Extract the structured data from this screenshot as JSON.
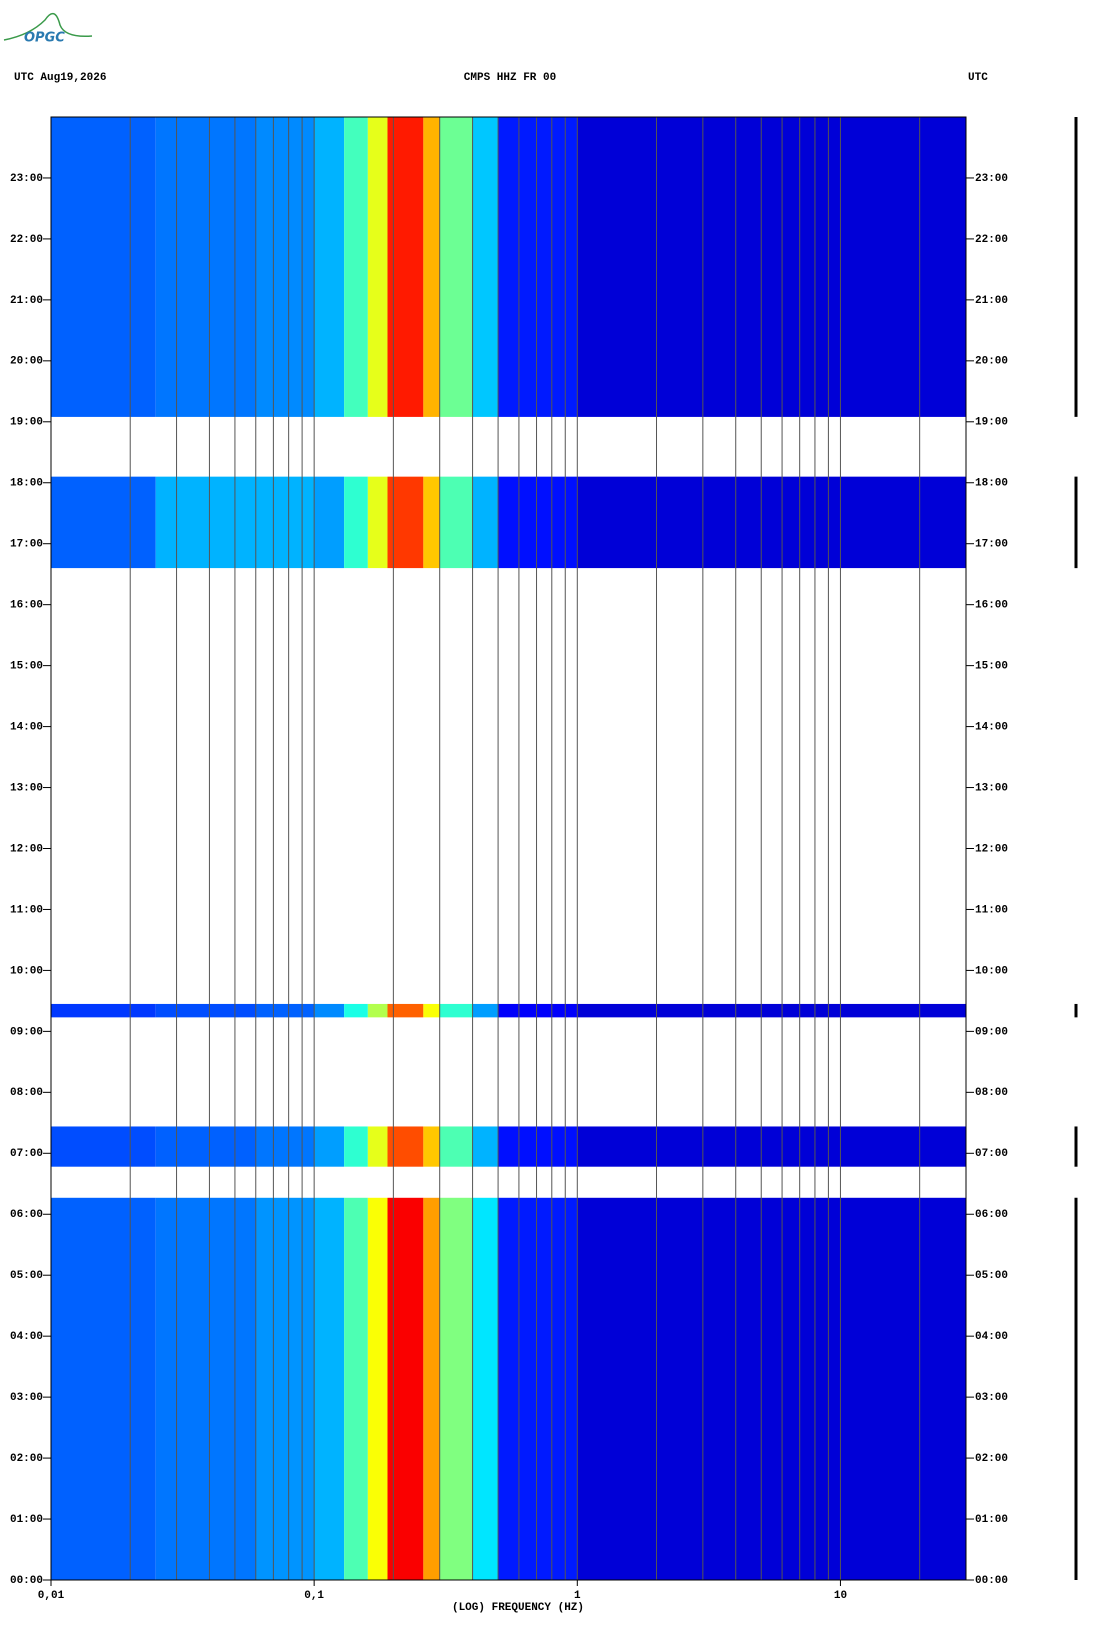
{
  "logo": "OPGC",
  "chart_data": {
    "type": "spectrogram",
    "header_left": "UTC  Aug19,2026",
    "title": "CMPS HHZ FR 00",
    "header_right": "UTC",
    "xlabel": "(LOG) FREQUENCY (HZ)",
    "xscale": "log",
    "xlim": [
      0.01,
      30
    ],
    "xticks": [
      {
        "value": 0.01,
        "label": "0,01"
      },
      {
        "value": 0.1,
        "label": "0,1"
      },
      1,
      10
    ],
    "xgrid": [
      0.02,
      0.03,
      0.04,
      0.05,
      0.06,
      0.07,
      0.08,
      0.09,
      0.1,
      0.2,
      0.3,
      0.4,
      0.5,
      0.6,
      0.7,
      0.8,
      0.9,
      1,
      2,
      3,
      4,
      5,
      6,
      7,
      8,
      9,
      10,
      20
    ],
    "ylim": [
      0,
      24
    ],
    "yticks": [
      {
        "value": 0,
        "label": "00:00"
      },
      {
        "value": 1,
        "label": "01:00"
      },
      {
        "value": 2,
        "label": "02:00"
      },
      {
        "value": 3,
        "label": "03:00"
      },
      {
        "value": 4,
        "label": "04:00"
      },
      {
        "value": 5,
        "label": "05:00"
      },
      {
        "value": 6,
        "label": "06:00"
      },
      {
        "value": 7,
        "label": "07:00"
      },
      {
        "value": 8,
        "label": "08:00"
      },
      {
        "value": 9,
        "label": "09:00"
      },
      {
        "value": 10,
        "label": "10:00"
      },
      {
        "value": 11,
        "label": "11:00"
      },
      {
        "value": 12,
        "label": "12:00"
      },
      {
        "value": 13,
        "label": "13:00"
      },
      {
        "value": 14,
        "label": "14:00"
      },
      {
        "value": 15,
        "label": "15:00"
      },
      {
        "value": 16,
        "label": "16:00"
      },
      {
        "value": 17,
        "label": "17:00"
      },
      {
        "value": 18,
        "label": "18:00"
      },
      {
        "value": 19,
        "label": "19:00"
      },
      {
        "value": 20,
        "label": "20:00"
      },
      {
        "value": 21,
        "label": "21:00"
      },
      {
        "value": 22,
        "label": "22:00"
      },
      {
        "value": 23,
        "label": "23:00"
      }
    ],
    "colormap": [
      "#00008f",
      "#0000ff",
      "#0080ff",
      "#00ffff",
      "#80ff80",
      "#ffff00",
      "#ff8000",
      "#ff0000",
      "#800000"
    ],
    "freq_bins": [
      0.01,
      0.025,
      0.06,
      0.1,
      0.13,
      0.16,
      0.19,
      0.26,
      0.3,
      0.4,
      0.5,
      1,
      30
    ],
    "segments": [
      {
        "start": 0,
        "end": 6.27,
        "intensity": [
          0.22,
          0.24,
          0.27,
          0.3,
          0.45,
          0.62,
          0.88,
          0.72,
          0.5,
          0.35,
          0.15,
          0.08
        ]
      },
      {
        "start": 6.78,
        "end": 7.44,
        "intensity": [
          0.2,
          0.22,
          0.24,
          0.28,
          0.42,
          0.6,
          0.8,
          0.68,
          0.45,
          0.3,
          0.14,
          0.08
        ]
      },
      {
        "start": 9.23,
        "end": 9.45,
        "intensity": [
          0.18,
          0.2,
          0.22,
          0.26,
          0.4,
          0.55,
          0.78,
          0.62,
          0.42,
          0.28,
          0.12,
          0.08
        ]
      },
      {
        "start": 16.6,
        "end": 18.1,
        "intensity": [
          0.22,
          0.3,
          0.3,
          0.28,
          0.42,
          0.6,
          0.82,
          0.68,
          0.45,
          0.3,
          0.14,
          0.08
        ]
      },
      {
        "start": 19.08,
        "end": 24,
        "intensity": [
          0.22,
          0.24,
          0.26,
          0.3,
          0.44,
          0.6,
          0.85,
          0.7,
          0.48,
          0.32,
          0.15,
          0.08
        ]
      }
    ]
  }
}
